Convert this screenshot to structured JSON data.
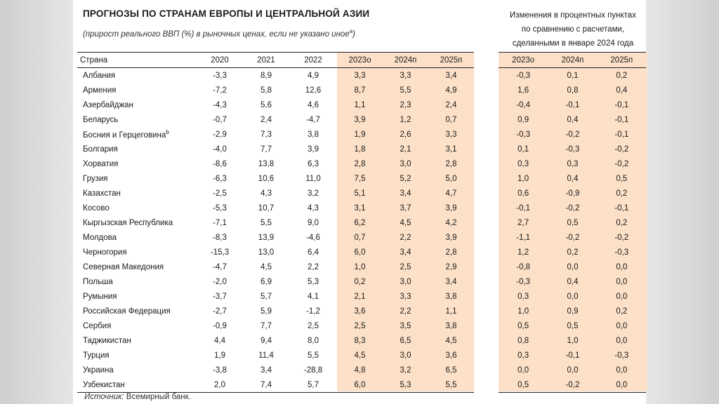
{
  "title": "ПРОГНОЗЫ ПО СТРАНАМ ЕВРОПЫ И ЦЕНТРАЛЬНОЙ АЗИИ",
  "subtitle": "(прирост реального ВВП (%) в рыночных ценах, если не указано иное",
  "subtitle_sup": "а",
  "subtitle_close": ")",
  "right_title_lines": [
    "Изменения в процентных пунктах",
    "по сравнению с расчетами,",
    "сделанными в январе 2024 года"
  ],
  "left_headers": [
    "Страна",
    "2020",
    "2021",
    "2022",
    "2023о",
    "2024п",
    "2025п"
  ],
  "right_headers": [
    "2023о",
    "2024п",
    "2025п"
  ],
  "highlight_color": "#fce0c7",
  "rows": [
    {
      "country": "Албания",
      "sup": "",
      "v": [
        "-3,3",
        "8,9",
        "4,9",
        "3,3",
        "3,3",
        "3,4"
      ],
      "d": [
        "-0,3",
        "0,1",
        "0,2"
      ]
    },
    {
      "country": "Армения",
      "sup": "",
      "v": [
        "-7,2",
        "5,8",
        "12,6",
        "8,7",
        "5,5",
        "4,9"
      ],
      "d": [
        "1,6",
        "0,8",
        "0,4"
      ]
    },
    {
      "country": "Азербайджан",
      "sup": "",
      "v": [
        "-4,3",
        "5,6",
        "4,6",
        "1,1",
        "2,3",
        "2,4"
      ],
      "d": [
        "-0,4",
        "-0,1",
        "-0,1"
      ]
    },
    {
      "country": "Беларусь",
      "sup": "",
      "v": [
        "-0,7",
        "2,4",
        "-4,7",
        "3,9",
        "1,2",
        "0,7"
      ],
      "d": [
        "0,9",
        "0,4",
        "-0,1"
      ]
    },
    {
      "country": "Босния и Герцеговина",
      "sup": "b",
      "v": [
        "-2,9",
        "7,3",
        "3,8",
        "1,9",
        "2,6",
        "3,3"
      ],
      "d": [
        "-0,3",
        "-0,2",
        "-0,1"
      ]
    },
    {
      "country": "Болгария",
      "sup": "",
      "v": [
        "-4,0",
        "7,7",
        "3,9",
        "1,8",
        "2,1",
        "3,1"
      ],
      "d": [
        "0,1",
        "-0,3",
        "-0,2"
      ]
    },
    {
      "country": "Хорватия",
      "sup": "",
      "v": [
        "-8,6",
        "13,8",
        "6,3",
        "2,8",
        "3,0",
        "2,8"
      ],
      "d": [
        "0,3",
        "0,3",
        "-0,2"
      ]
    },
    {
      "country": "Грузия",
      "sup": "",
      "v": [
        "-6,3",
        "10,6",
        "11,0",
        "7,5",
        "5,2",
        "5,0"
      ],
      "d": [
        "1,0",
        "0,4",
        "0,5"
      ]
    },
    {
      "country": "Казахстан",
      "sup": "",
      "v": [
        "-2,5",
        "4,3",
        "3,2",
        "5,1",
        "3,4",
        "4,7"
      ],
      "d": [
        "0,6",
        "-0,9",
        "0,2"
      ]
    },
    {
      "country": "Косово",
      "sup": "",
      "v": [
        "-5,3",
        "10,7",
        "4,3",
        "3,1",
        "3,7",
        "3,9"
      ],
      "d": [
        "-0,1",
        "-0,2",
        "-0,1"
      ]
    },
    {
      "country": "Кыргызская Республика",
      "sup": "",
      "v": [
        "-7,1",
        "5,5",
        "9,0",
        "6,2",
        "4,5",
        "4,2"
      ],
      "d": [
        "2,7",
        "0,5",
        "0,2"
      ]
    },
    {
      "country": "Молдова",
      "sup": "",
      "v": [
        "-8,3",
        "13,9",
        "-4,6",
        "0,7",
        "2,2",
        "3,9"
      ],
      "d": [
        "-1,1",
        "-0,2",
        "-0,2"
      ]
    },
    {
      "country": "Черногория",
      "sup": "",
      "v": [
        "-15,3",
        "13,0",
        "6,4",
        "6,0",
        "3,4",
        "2,8"
      ],
      "d": [
        "1,2",
        "0,2",
        "-0,3"
      ]
    },
    {
      "country": "Северная Македония",
      "sup": "",
      "v": [
        "-4,7",
        "4,5",
        "2,2",
        "1,0",
        "2,5",
        "2,9"
      ],
      "d": [
        "-0,8",
        "0,0",
        "0,0"
      ]
    },
    {
      "country": "Польша",
      "sup": "",
      "v": [
        "-2,0",
        "6,9",
        "5,3",
        "0,2",
        "3,0",
        "3,4"
      ],
      "d": [
        "-0,3",
        "0,4",
        "0,0"
      ]
    },
    {
      "country": "Румыния",
      "sup": "",
      "v": [
        "-3,7",
        "5,7",
        "4,1",
        "2,1",
        "3,3",
        "3,8"
      ],
      "d": [
        "0,3",
        "0,0",
        "0,0"
      ]
    },
    {
      "country": "Российская Федерация",
      "sup": "",
      "v": [
        "-2,7",
        "5,9",
        "-1,2",
        "3,6",
        "2,2",
        "1,1"
      ],
      "d": [
        "1,0",
        "0,9",
        "0,2"
      ]
    },
    {
      "country": "Сербия",
      "sup": "",
      "v": [
        "-0,9",
        "7,7",
        "2,5",
        "2,5",
        "3,5",
        "3,8"
      ],
      "d": [
        "0,5",
        "0,5",
        "0,0"
      ]
    },
    {
      "country": "Таджикистан",
      "sup": "",
      "v": [
        "4,4",
        "9,4",
        "8,0",
        "8,3",
        "6,5",
        "4,5"
      ],
      "d": [
        "0,8",
        "1,0",
        "0,0"
      ]
    },
    {
      "country": "Турция",
      "sup": "",
      "v": [
        "1,9",
        "11,4",
        "5,5",
        "4,5",
        "3,0",
        "3,6"
      ],
      "d": [
        "0,3",
        "-0,1",
        "-0,3"
      ]
    },
    {
      "country": "Украина",
      "sup": "",
      "v": [
        "-3,8",
        "3,4",
        "-28,8",
        "4,8",
        "3,2",
        "6,5"
      ],
      "d": [
        "0,0",
        "0,0",
        "0,0"
      ]
    },
    {
      "country": "Узбекистан",
      "sup": "",
      "v": [
        "2,0",
        "7,4",
        "5,7",
        "6,0",
        "5,3",
        "5,5"
      ],
      "d": [
        "0,5",
        "-0,2",
        "0,0"
      ]
    }
  ],
  "source_label": "Источник:",
  "source_text": " Всемирный банк."
}
